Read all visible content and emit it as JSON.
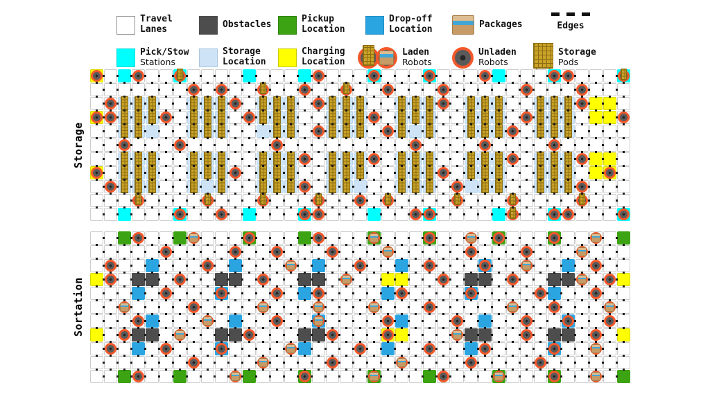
{
  "colors": {
    "travel": "#FFFFFF",
    "obstacle": "#4D4D4D",
    "pickup": "#3CA312",
    "dropoff": "#2AA5E2",
    "station": "#00FFFF",
    "storage": "#CEE4F6",
    "charging": "#FFFF00",
    "robot_ring": "#F4582A",
    "robot_core": "#5A5A5A",
    "robot_core_dark": "#262626",
    "pod": "#C9A227",
    "pod_line": "#8A6D13",
    "package": "#C79B66",
    "package_tape": "#35A7E0",
    "grid_border": "#CDCDCD",
    "edge_dot": "#1A1A1A"
  },
  "legend": {
    "rows": [
      [
        {
          "id": "travel-lanes",
          "swatch": "travel",
          "label_lines": [
            "Travel",
            "Lanes"
          ],
          "alt_lines": []
        },
        {
          "id": "obstacles",
          "swatch": "obstacle",
          "label_lines": [
            "Obstacles"
          ],
          "alt_lines": []
        },
        {
          "id": "pickup-location",
          "swatch": "pickup",
          "label_lines": [
            "Pickup",
            "Location"
          ],
          "alt_lines": []
        },
        {
          "id": "dropoff-location",
          "swatch": "dropoff",
          "label_lines": [
            "Drop-off",
            "Location"
          ],
          "alt_lines": []
        },
        {
          "id": "packages",
          "swatch": "package",
          "label_lines": [
            "Packages"
          ],
          "alt_lines": []
        },
        {
          "id": "edges",
          "swatch": "edges",
          "label_lines": [
            "Edges"
          ],
          "alt_lines": []
        }
      ],
      [
        {
          "id": "pick-stow-stations",
          "swatch": "station",
          "label_lines": [
            "Pick/Stow",
            "Stations"
          ],
          "alt_lines": [
            1
          ]
        },
        {
          "id": "storage-location",
          "swatch": "storage",
          "label_lines": [
            "Storage",
            "Location"
          ],
          "alt_lines": []
        },
        {
          "id": "charging-location",
          "swatch": "charging",
          "label_lines": [
            "Charging",
            "Location"
          ],
          "alt_lines": []
        },
        {
          "id": "laden-robots",
          "swatch": "laden",
          "label_lines": [
            "Laden",
            "Robots"
          ],
          "alt_lines": [
            1
          ]
        },
        {
          "id": "unladen-robots",
          "swatch": "unladen",
          "label_lines": [
            "Unladen",
            "Robots"
          ],
          "alt_lines": [
            1
          ]
        },
        {
          "id": "storage-pods",
          "swatch": "pods",
          "label_lines": [
            "Storage",
            "Pods"
          ],
          "alt_lines": [
            1
          ]
        }
      ]
    ]
  },
  "cell_types": {
    ".": "travel-lane",
    "S": "storage-location",
    "P": "pick-stow-station",
    "C": "charging-location",
    "G": "pickup-location",
    "D": "dropoff-location",
    "O": "obstacle"
  },
  "entity_types": {
    "u": "unladen-robot",
    "l": "laden-robot-with-pod",
    "b": "laden-robot-with-package",
    "p": "storage-pod"
  },
  "grids": [
    {
      "id": "storage",
      "label": "Storage",
      "rows": 11,
      "cols": 39,
      "cells": [
        "C.P...P....P...P....P...P....P...P....P",
        ".......................................",
        "..SSS..SSS..SSS..SSS..SSS..SSS..SSS.CC.",
        "C.SSS..SSS..SSS..SSS..SSS..SSS..SSS.CC.",
        "..SSS..SSS..SSS..SSS..SSS..SSS..SSS....",
        ".......................................",
        "..SSS..SSS..SSS..SSS..SSS..SSS..SSS.CC.",
        "C.SSS..SSS..SSS..SSS..SSS..SSS..SSS.CC.",
        "..SSS..SSS..SSS..SSS..SSS..SSS..SSS....",
        ".......................................",
        "..P...P....P...P....P...P....P...P....P"
      ],
      "entities": [
        "u..u..l.........u...u...u...u....uu...l",
        ".......u.u..l..u..l..u...u.....u...u...",
        ".uppp..pppu.ppp.uppp..pppu.ppp..pppu...",
        "uupppu.ppp.uppp..pppu.ppp..ppp.uppp...u",
        "..pp...ppp...pp.uppp.up.p..pppu.ppp....",
        "..u...u......u.........u....u....u.....",
        "..ppp..ppp..pppu.pppu.ppp..pppu.pppu...",
        "u.ppp..pppu.ppp..ppp..pppu.ppp..ppp..u.",
        ".uppp..p.p..pppu.pp...ppp.u.pp..pppu...",
        "...l....l...l...l..u.l....l...l....l...",
        "......u..u.....uu......uu.....l..uu...u"
      ]
    },
    {
      "id": "sortation",
      "label": "Sortation",
      "rows": 11,
      "cols": 39,
      "cells": [
        "..G...G....G...G....G...G....G...G....G",
        ".......................................",
        "....D.....D.....D.....D.....D.....D....",
        "C..OO....OO....OO....CC....OO....OO...C",
        "...D.....D.....D.....D.....D.....D.....",
        ".......................................",
        "....D.....D.....D.....D.....D.....D....",
        "C..OO....OO....OO....CC....OO....OO...C",
        "...D.....D.....D.....D.....D.....D.....",
        ".......................................",
        "..G...G....G...G....G...G....G...G....G"
      ],
      "entities": [
        "...u...b...u....u...b...u..b.u...u..b..",
        ".....u....u..u...u...b.....u...u...b...",
        ".u......u.....b....u....u...u..b....u..",
        ".u....u.....u.....b......u....u....b.u.",
        ".....u...u...u..u.....u....u....u...u..",
        "..b....u....b...b...b...u.....b..u...b.",
        "...u....b....u..b....u....u....u..u..u.",
        "..u...b....u.....u...u....b....u....u..",
        ".u...u...u....b....u....u...u....u..b..",
        ".......u....b....u....b....u....u......",
        "...u......b....u....b....u...b...u..b.."
      ]
    }
  ]
}
